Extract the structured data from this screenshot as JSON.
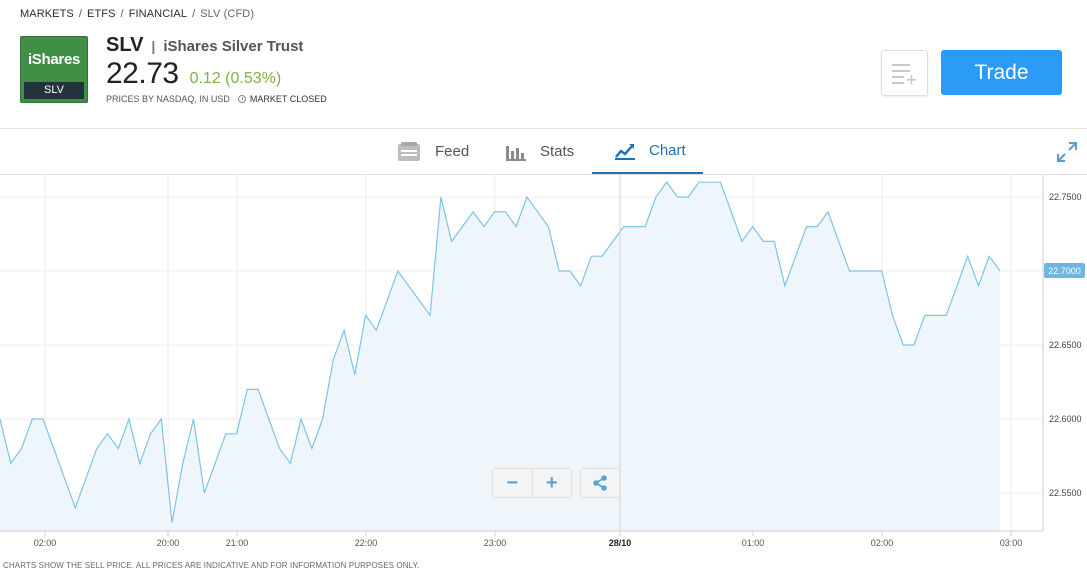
{
  "breadcrumb": {
    "items": [
      "MARKETS",
      "ETFS",
      "FINANCIAL"
    ],
    "current": "SLV (CFD)",
    "separator": "/"
  },
  "instrument": {
    "logo_brand": "iShares",
    "logo_ticker": "SLV",
    "symbol": "SLV",
    "name": "iShares Silver Trust",
    "price": "22.73",
    "change": "0.12 (0.53%)",
    "source_note": "PRICES BY NASDAQ, IN USD",
    "market_status": "MARKET CLOSED"
  },
  "actions": {
    "trade_label": "Trade",
    "watchlist_icon": "add-to-watchlist-icon"
  },
  "tabs": [
    {
      "label": "Feed",
      "icon": "feed-icon",
      "active": false
    },
    {
      "label": "Stats",
      "icon": "stats-bar-icon",
      "active": false
    },
    {
      "label": "Chart",
      "icon": "chart-line-icon",
      "active": true
    }
  ],
  "chart_controls": {
    "zoom_out": "−",
    "zoom_in": "+"
  },
  "footer": {
    "disclaimer": "CHARTS SHOW THE SELL PRICE. ALL PRICES ARE INDICATIVE AND FOR INFORMATION PURPOSES ONLY."
  },
  "colors": {
    "accent": "#2a9bf6",
    "positive": "#7cb342",
    "line": "#7ec3e6",
    "fill": "#eef6fc",
    "logo_green": "#3f8f47"
  },
  "chart_data": {
    "type": "area",
    "x_ticks": [
      "02:00",
      "20:00",
      "21:00",
      "22:00",
      "23:00",
      "28/10",
      "01:00",
      "02:00",
      "03:00"
    ],
    "y_ticks": [
      "22.5500",
      "22.6000",
      "22.6500",
      "22.7500"
    ],
    "current_value_label": "22.7000",
    "ylim": [
      22.52,
      22.77
    ],
    "grid": true,
    "values": [
      22.6,
      22.57,
      22.58,
      22.6,
      22.6,
      22.58,
      22.56,
      22.54,
      22.56,
      22.58,
      22.59,
      22.58,
      22.6,
      22.57,
      22.59,
      22.6,
      22.53,
      22.57,
      22.6,
      22.55,
      22.57,
      22.59,
      22.59,
      22.62,
      22.62,
      22.6,
      22.58,
      22.57,
      22.6,
      22.58,
      22.6,
      22.64,
      22.66,
      22.63,
      22.67,
      22.66,
      22.68,
      22.7,
      22.69,
      22.68,
      22.67,
      22.75,
      22.72,
      22.73,
      22.74,
      22.73,
      22.74,
      22.74,
      22.73,
      22.75,
      22.74,
      22.73,
      22.7,
      22.7,
      22.69,
      22.71,
      22.71,
      22.72,
      22.73,
      22.73,
      22.73,
      22.75,
      22.76,
      22.75,
      22.75,
      22.76,
      22.76,
      22.76,
      22.74,
      22.72,
      22.73,
      22.72,
      22.72,
      22.69,
      22.71,
      22.73,
      22.73,
      22.74,
      22.72,
      22.7,
      22.7,
      22.7,
      22.7,
      22.67,
      22.65,
      22.65,
      22.67,
      22.67,
      22.67,
      22.69,
      22.71,
      22.69,
      22.71,
      22.7
    ]
  }
}
